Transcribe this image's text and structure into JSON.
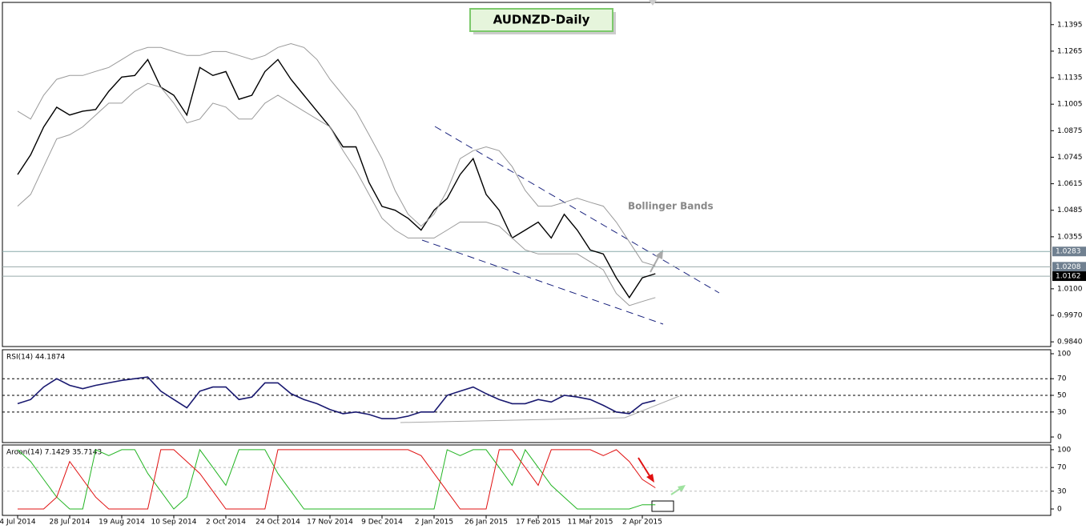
{
  "chart_data": [
    {
      "type": "line",
      "title": "AUDNZD-Daily",
      "annotation": "Bollinger Bands",
      "categories": [
        "4 Jul 2014",
        null,
        null,
        null,
        "28 Jul 2014",
        null,
        null,
        null,
        "19 Aug 2014",
        null,
        null,
        null,
        "10 Sep 2014",
        null,
        null,
        null,
        "2 Oct 2014",
        null,
        null,
        null,
        "24 Oct 2014",
        null,
        null,
        null,
        "17 Nov 2014",
        null,
        null,
        null,
        "9 Dec 2014",
        null,
        null,
        null,
        "2 Jan 2015",
        null,
        null,
        null,
        "26 Jan 2015",
        null,
        null,
        null,
        "17 Feb 2015",
        null,
        null,
        null,
        "11 Mar 2015",
        null,
        null,
        null,
        "2 Apr 2015",
        null
      ],
      "series": [
        {
          "color": "#000000",
          "values": [
            1.066,
            1.0757,
            1.0893,
            1.099,
            1.0952,
            1.0971,
            1.0979,
            1.1068,
            1.1138,
            1.1146,
            1.1224,
            1.1088,
            1.1049,
            1.0952,
            1.1185,
            1.1146,
            1.1165,
            1.1029,
            1.1049,
            1.1165,
            1.1224,
            1.1127,
            1.1049,
            1.0971,
            1.0893,
            1.0796,
            1.0796,
            1.0621,
            1.0504,
            1.0485,
            1.0446,
            1.0388,
            1.0485,
            1.0543,
            1.066,
            1.0738,
            1.0563,
            1.0485,
            1.0349,
            1.0388,
            1.0427,
            1.0349,
            1.0465,
            1.0388,
            1.029,
            1.0271,
            1.0154,
            1.0057,
            1.0154,
            1.0174
          ]
        },
        {
          "color": "#9a9a9a",
          "values": [
            1.0971,
            1.0932,
            1.1049,
            1.1127,
            1.1146,
            1.1146,
            1.1166,
            1.1185,
            1.1224,
            1.1263,
            1.1283,
            1.1283,
            1.1263,
            1.1244,
            1.1244,
            1.1263,
            1.1263,
            1.1244,
            1.1224,
            1.1244,
            1.1283,
            1.1302,
            1.1283,
            1.1224,
            1.1127,
            1.1049,
            1.0971,
            1.0855,
            1.0738,
            1.0582,
            1.0466,
            1.0407,
            1.0466,
            1.0582,
            1.0738,
            1.0777,
            1.0796,
            1.0777,
            1.0699,
            1.0582,
            1.0505,
            1.0505,
            1.0524,
            1.0544,
            1.0524,
            1.0505,
            1.0427,
            1.033,
            1.0232,
            1.0213
          ]
        },
        {
          "color": "#9a9a9a",
          "values": [
            1.0505,
            1.0563,
            1.0699,
            1.0835,
            1.0855,
            1.0894,
            1.0952,
            1.101,
            1.101,
            1.1069,
            1.1107,
            1.1088,
            1.101,
            1.0913,
            1.0932,
            1.101,
            1.0991,
            1.0932,
            1.0932,
            1.101,
            1.1049,
            1.101,
            1.0971,
            1.0932,
            1.0894,
            1.0777,
            1.068,
            1.0563,
            1.0446,
            1.0388,
            1.0349,
            1.0349,
            1.0349,
            1.0388,
            1.0427,
            1.0427,
            1.0427,
            1.0407,
            1.0349,
            1.0291,
            1.0271,
            1.0271,
            1.0271,
            1.0271,
            1.0232,
            1.0193,
            1.0077,
            1.0018,
            1.0038,
            1.0057
          ]
        }
      ],
      "ylim": [
        0.9817,
        1.1504
      ],
      "yticks": [
        1.1395,
        1.1265,
        1.1135,
        1.1005,
        1.0875,
        1.0745,
        1.0615,
        1.0485,
        1.0355,
        {
          "value": 1.01,
          "label": "1.0100"
        },
        {
          "value": 0.997,
          "label": "0.9970"
        },
        {
          "value": 0.984,
          "label": "0.9840"
        }
      ],
      "levels": [
        1.0283,
        1.0208,
        1.0162
      ]
    },
    {
      "type": "line",
      "title": "RSI(14) 44.1874",
      "series": [
        {
          "color": "#191970",
          "values": [
            40,
            45,
            60,
            70,
            62,
            58,
            62,
            65,
            68,
            70,
            72,
            55,
            45,
            35,
            55,
            60,
            60,
            45,
            48,
            65,
            65,
            52,
            45,
            40,
            33,
            28,
            30,
            27,
            22,
            22,
            25,
            30,
            30,
            50,
            55,
            60,
            52,
            45,
            40,
            40,
            45,
            42,
            50,
            48,
            45,
            38,
            30,
            28,
            40,
            44
          ]
        }
      ],
      "ylim": [
        -6.7,
        104.8
      ],
      "yticks": [
        0,
        30,
        50,
        70,
        100
      ]
    },
    {
      "type": "line",
      "title": "Aroon(14) 7.1429 35.7143",
      "series": [
        {
          "color": "#22b422",
          "values": [
            100,
            80,
            50,
            20,
            0,
            0,
            100,
            90,
            100,
            100,
            60,
            30,
            0,
            20,
            100,
            70,
            40,
            100,
            100,
            100,
            60,
            30,
            0,
            0,
            0,
            0,
            0,
            0,
            0,
            0,
            0,
            0,
            0,
            100,
            90,
            100,
            100,
            70,
            40,
            100,
            70,
            40,
            20,
            0,
            0,
            0,
            0,
            0,
            7.1429,
            7.1429
          ]
        },
        {
          "color": "#e01010",
          "values": [
            0,
            0,
            0,
            20,
            80,
            50,
            20,
            0,
            0,
            0,
            0,
            100,
            100,
            80,
            60,
            30,
            0,
            0,
            0,
            0,
            100,
            100,
            100,
            100,
            100,
            100,
            100,
            100,
            100,
            100,
            100,
            90,
            60,
            30,
            0,
            0,
            0,
            100,
            100,
            70,
            40,
            100,
            100,
            100,
            100,
            90,
            100,
            80,
            50,
            35.7143
          ]
        }
      ],
      "ylim": [
        -10.8,
        108
      ],
      "yticks": [
        0,
        30,
        70,
        100
      ]
    }
  ]
}
